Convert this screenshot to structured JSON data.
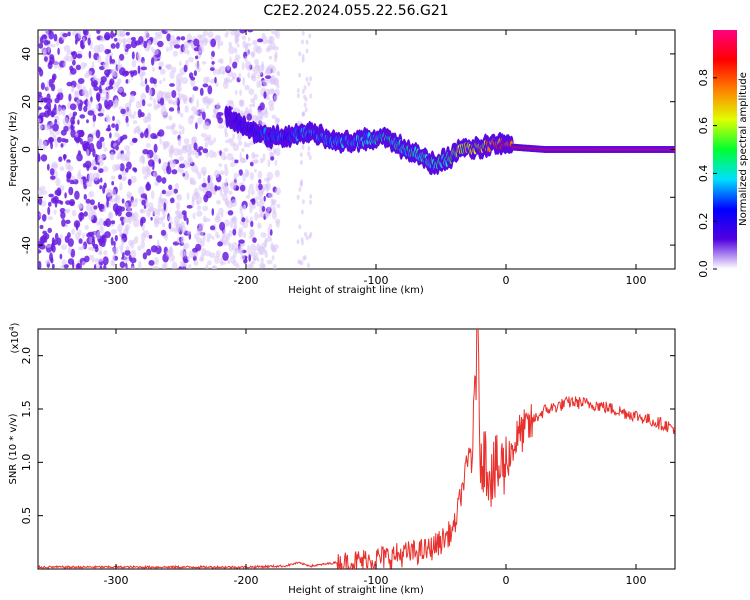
{
  "title": "C2E2.2024.055.22.56.G21",
  "colors": {
    "snr_line": "#e8302c",
    "spectrogram_dots": "#6a1de0",
    "spectrogram_light": "#d8c4f5"
  },
  "chart_data": [
    {
      "type": "heatmap",
      "name": "spectrogram",
      "xlabel": "Height of straight line (km)",
      "ylabel": "Frequency (Hz)",
      "xlim": [
        -360,
        130
      ],
      "ylim": [
        -50,
        50
      ],
      "xticks": [
        -300,
        -200,
        -100,
        0,
        100
      ],
      "yticks": [
        -40,
        -20,
        0,
        20,
        40
      ],
      "colorbar": {
        "label": "Normalized spectral amplitude",
        "range": [
          0.0,
          1.0
        ],
        "ticks": [
          "0.0",
          "0.2",
          "0.4",
          "0.6",
          "0.8"
        ],
        "colormap": [
          "#ffffff",
          "#5000e0",
          "#0000ff",
          "#00e0ff",
          "#00ff30",
          "#e0ff00",
          "#ff8000",
          "#ff0000",
          "#ff0080"
        ]
      },
      "noise_region": {
        "x_from": -360,
        "x_to": -185,
        "amplitude": 0.1
      },
      "ridge": {
        "x": [
          -215,
          -200,
          -185,
          -170,
          -150,
          -130,
          -110,
          -95,
          -80,
          -65,
          -55,
          -45,
          -35,
          -20,
          0,
          5,
          30,
          60,
          90,
          130
        ],
        "freq": [
          14,
          9,
          6,
          5,
          7,
          3,
          4,
          5,
          1,
          -3,
          -6,
          -4,
          0,
          1,
          3,
          1,
          0,
          0,
          0,
          0
        ],
        "amplitude": [
          0.15,
          0.2,
          0.3,
          0.3,
          0.35,
          0.35,
          0.4,
          0.45,
          0.45,
          0.45,
          0.5,
          0.55,
          0.65,
          0.75,
          0.85,
          0.9,
          0.95,
          0.95,
          0.95,
          0.95
        ]
      }
    },
    {
      "type": "line",
      "name": "snr",
      "xlabel": "Height of straight line (km)",
      "ylabel": "SNR (10 * v/v)",
      "y_multiplier": "(x10",
      "y_multiplier_exp": "4",
      "y_multiplier_close": ")",
      "xlim": [
        -360,
        130
      ],
      "ylim": [
        0,
        2.25
      ],
      "xticks": [
        -300,
        -200,
        -100,
        0,
        100
      ],
      "yticks": [
        0.5,
        1.0,
        1.5,
        2.0
      ],
      "ytick_labels": [
        "0.5",
        "1.0",
        "1.5",
        "2.0"
      ],
      "envelope": {
        "x": [
          -360,
          -200,
          -170,
          -160,
          -150,
          -120,
          -100,
          -60,
          -50,
          -40,
          -35,
          -30,
          -25,
          -22,
          -20,
          -10,
          0,
          10,
          30,
          50,
          70,
          100,
          130
        ],
        "y": [
          0.02,
          0.02,
          0.03,
          0.06,
          0.03,
          0.08,
          0.12,
          0.2,
          0.28,
          0.4,
          0.7,
          1.0,
          1.3,
          2.2,
          1.2,
          0.95,
          1.05,
          1.3,
          1.5,
          1.58,
          1.55,
          1.45,
          1.33
        ]
      },
      "noise_amplitude": [
        {
          "x_from": -360,
          "x_to": -130,
          "amp": 0.01
        },
        {
          "x_from": -130,
          "x_to": -30,
          "amp": 0.12
        },
        {
          "x_from": -30,
          "x_to": 0,
          "amp": 0.35
        },
        {
          "x_from": 0,
          "x_to": 20,
          "amp": 0.2
        },
        {
          "x_from": 20,
          "x_to": 130,
          "amp": 0.06
        }
      ]
    }
  ]
}
